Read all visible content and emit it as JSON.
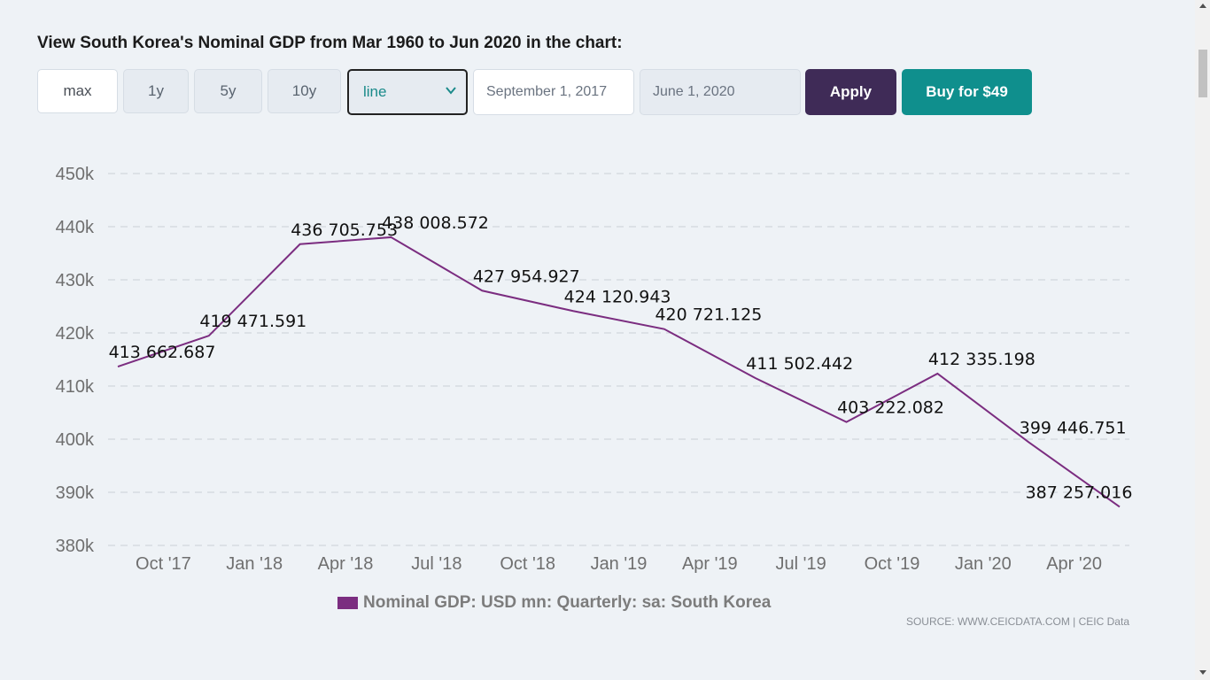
{
  "heading": "View South Korea's Nominal GDP from Mar 1960 to Jun 2020 in the chart:",
  "controls": {
    "ranges": [
      "max",
      "1y",
      "5y",
      "10y"
    ],
    "chart_type": "line",
    "start_date": "September 1, 2017",
    "end_date": "June 1, 2020",
    "apply_label": "Apply",
    "buy_label": "Buy for $49"
  },
  "colors": {
    "line": "#7b2d80",
    "apply": "#3f2b57",
    "buy": "#0f8f8d",
    "accent_text": "#1a8a8a"
  },
  "source": "SOURCE: WWW.CEICDATA.COM | CEIC Data",
  "chart_data": {
    "type": "line",
    "ylim": [
      380000,
      450000
    ],
    "y_ticks": [
      450000,
      440000,
      430000,
      420000,
      410000,
      400000,
      390000,
      380000
    ],
    "y_tick_labels": [
      "450k",
      "440k",
      "430k",
      "420k",
      "410k",
      "400k",
      "390k",
      "380k"
    ],
    "x_tick_labels": [
      "Oct '17",
      "Jan '18",
      "Apr '18",
      "Jul '18",
      "Oct '18",
      "Jan '19",
      "Apr '19",
      "Jul '19",
      "Oct '19",
      "Jan '20",
      "Apr '20"
    ],
    "grid": true,
    "legend_position": "bottom-center",
    "series": [
      {
        "name": "Nominal GDP: USD mn: Quarterly: sa: South Korea",
        "x": [
          "2017-09",
          "2017-12",
          "2018-03",
          "2018-06",
          "2018-09",
          "2018-12",
          "2019-03",
          "2019-06",
          "2019-09",
          "2019-12",
          "2020-03",
          "2020-06"
        ],
        "values": [
          413662.687,
          419471.591,
          436705.753,
          438008.572,
          427954.927,
          424120.943,
          420721.125,
          411502.442,
          403222.082,
          412335.198,
          399446.751,
          387257.016
        ],
        "labels": [
          "413 662.687",
          "419 471.591",
          "436 705.753",
          "438 008.572",
          "427 954.927",
          "424 120.943",
          "420 721.125",
          "411 502.442",
          "403 222.082",
          "412 335.198",
          "399 446.751",
          "387 257.016"
        ]
      }
    ]
  }
}
